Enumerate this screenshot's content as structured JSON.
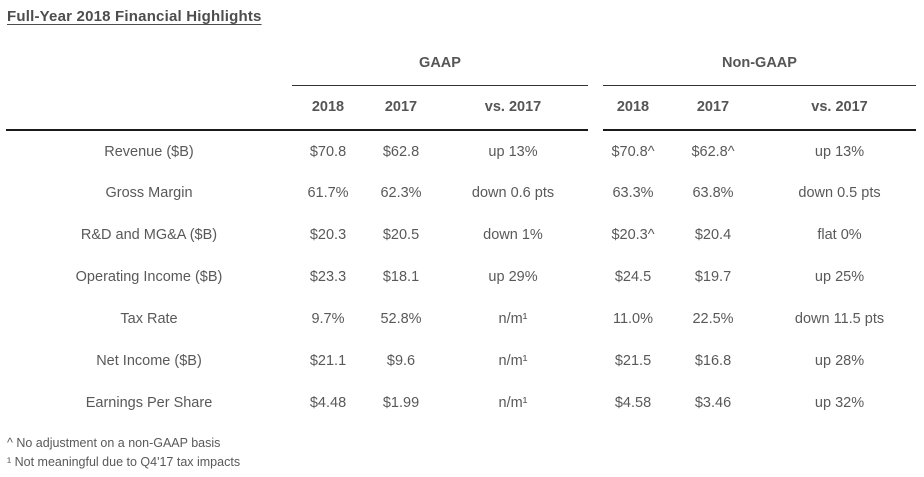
{
  "title": "Full-Year 2018 Financial Highlights",
  "table": {
    "groups": [
      {
        "label": "GAAP",
        "columns": [
          "2018",
          "2017",
          "vs. 2017"
        ]
      },
      {
        "label": "Non-GAAP",
        "columns": [
          "2018",
          "2017",
          "vs. 2017"
        ]
      }
    ],
    "rows": [
      {
        "label": "Revenue ($B)",
        "gaap": [
          "$70.8",
          "$62.8",
          "up 13%"
        ],
        "non_gaap": [
          "$70.8^",
          "$62.8^",
          "up 13%"
        ]
      },
      {
        "label": "Gross Margin",
        "gaap": [
          "61.7%",
          "62.3%",
          "down 0.6 pts"
        ],
        "non_gaap": [
          "63.3%",
          "63.8%",
          "down 0.5 pts"
        ]
      },
      {
        "label": "R&D and MG&A ($B)",
        "gaap": [
          "$20.3",
          "$20.5",
          "down 1%"
        ],
        "non_gaap": [
          "$20.3^",
          "$20.4",
          "flat 0%"
        ]
      },
      {
        "label": "Operating Income ($B)",
        "gaap": [
          "$23.3",
          "$18.1",
          "up 29%"
        ],
        "non_gaap": [
          "$24.5",
          "$19.7",
          "up 25%"
        ]
      },
      {
        "label": "Tax Rate",
        "gaap": [
          "9.7%",
          "52.8%",
          "n/m¹"
        ],
        "non_gaap": [
          "11.0%",
          "22.5%",
          "down 11.5 pts"
        ]
      },
      {
        "label": "Net Income ($B)",
        "gaap": [
          "$21.1",
          "$9.6",
          "n/m¹"
        ],
        "non_gaap": [
          "$21.5",
          "$16.8",
          "up 28%"
        ]
      },
      {
        "label": "Earnings Per Share",
        "gaap": [
          "$4.48",
          "$1.99",
          "n/m¹"
        ],
        "non_gaap": [
          "$4.58",
          "$3.46",
          "up 32%"
        ]
      }
    ]
  },
  "footnotes": [
    "^ No adjustment on a non-GAAP basis",
    "¹ Not meaningful due to Q4'17 tax impacts"
  ],
  "colors": {
    "text": "#595959",
    "heading": "#4d4d4d",
    "rule_heavy": "#1a1a1a",
    "rule_light": "#333333",
    "background": "#ffffff"
  }
}
